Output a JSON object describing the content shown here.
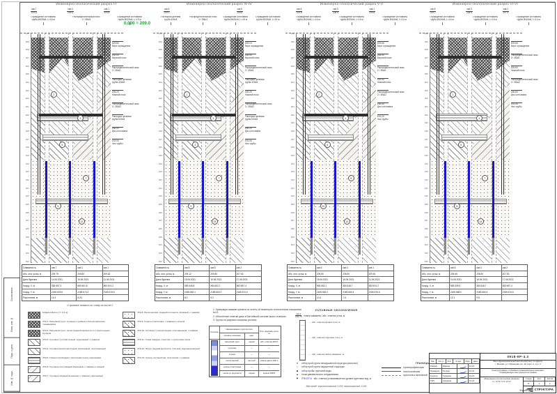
{
  "colors": {
    "accent_green": "#18A938",
    "pile_blue": "#1616CE",
    "signature_blue": "#2A4FD0"
  },
  "datum_label": "0.000 = 209.0",
  "ruler": [
    "210",
    "209",
    "208",
    "207",
    "206",
    "205",
    "204",
    "203",
    "202",
    "201",
    "200",
    "199",
    "198",
    "197",
    "196",
    "195",
    "194",
    "193",
    "192",
    "191",
    "190",
    "189",
    "188",
    "187",
    "186",
    "185",
    "184",
    "183",
    "182"
  ],
  "sections": [
    {
      "title": "Инженерно-геологический разрез I-I",
      "callouts": [
        {
          "n": "скв.7",
          "e": "209.8"
        },
        {
          "n": "скв.4",
          "e": "209.6"
        },
        {
          "n": "скв.1",
          "e": "209.8"
        }
      ],
      "top_ann": [
        "Ограждение котлована\nтруба Ø426х8, L=16 м",
        "Распределительный пояс\n2 I 35Ш1",
        "Ограждение котлована\nтруба Ø426х8, L=15 м"
      ],
      "right_ann": [
        "209.80\nВерх ограждения",
        "208.00\nВерхний пояс",
        "Распределительный пояс\n2 I 35Ш1",
        "Распорка целевая\nтруба 426х8",
        "205.20\nНижний пояс",
        "Распределительный пояс\n2 I 35Ш2",
        "Распорка целевая\nтруба 630х8",
        "196.00\nДно котлована",
        "193.00\nНиз трубы"
      ],
      "ige": [
        "2",
        "3",
        "5",
        "7",
        "9",
        "12"
      ]
    },
    {
      "title": "Инженерно-геологический разрез IV-IV",
      "callouts": [
        {
          "n": "скв.5",
          "e": "209.1"
        },
        {
          "n": "скв.6",
          "e": "209.8"
        }
      ],
      "top_ann": [
        "Распорка целевая\nтруба 426х8",
        "Распределительный пояс\n2 I 35Ш1",
        "Ограждение котлована\nтруба Ø426х8, L=15 м",
        "Ограждение котлована\nтруба Ø426х8, L=14 м"
      ],
      "right_ann": [
        "209.10\nВерх ограждения",
        "208.00\nВерхний пояс",
        "Распределительный пояс\n2 I 35Ш1",
        "Распорка целевая\nтруба 426х8",
        "205.20\nНижний пояс",
        "Распределительный пояс\n2 I 35Ш2",
        "Распорка целевая\nтруба 630х8",
        "196.20\nДно котлована",
        "193.00\nНиз трубы"
      ],
      "ige": [
        "1",
        "3",
        "4",
        "7",
        "9",
        "13"
      ]
    },
    {
      "title": "Инженерно-геологический разрез V-V",
      "callouts": [
        {
          "n": "скв.6",
          "e": "209.8"
        },
        {
          "n": "скв.3",
          "e": "208.9"
        },
        {
          "n": "скв.1",
          "e": "209.8"
        }
      ],
      "top_ann": [
        "Ограждение котлована\nтруба Ø426х8, L=16 м",
        "Ограждение котлована\nтруба Ø426х8, L=15 м",
        "Ограждение котлована\nтруба Ø426х8, L=14 м"
      ],
      "right_ann": [
        "209.60\nВерх ограждения",
        "208.00\nВерхний пояс",
        "Распределительный пояс\n2 I 35Ш1",
        "205.40\nНижний пояс",
        "Распределительный пояс\n2 I 35Ш2",
        "196.40\nДно котлована",
        "193.20\nНиз трубы"
      ],
      "ige": [
        "2",
        "4",
        "6",
        "8",
        "10",
        "12"
      ]
    },
    {
      "title": "Инженерно-геологический разрез VI-VI",
      "callouts": [
        {
          "n": "скв.8",
          "e": "209.7"
        },
        {
          "n": "скв.3",
          "e": "208.9"
        },
        {
          "n": "скв.2",
          "e": "207.5"
        }
      ],
      "top_ann": [
        "Ограждение котлована\nтруба Ø426х8, L=16 м",
        "Ограждение котлована\nтруба Ø426х8, L=15 м",
        "Ограждение котлована\nтруба Ø426х8, L=14 м"
      ],
      "right_ann": [
        "209.60\nВерх ограждения",
        "Распределительный пояс\n2 I 35Ш1",
        "205.60\nНижний пояс",
        "Распределительный пояс\n2 I 35Ш2",
        "196.60\nДно котлована",
        "193.40\nНиз трубы"
      ],
      "ige": [
        "1",
        "3",
        "5",
        "7",
        "11",
        "14"
      ]
    }
  ],
  "tables": [
    {
      "rows": [
        [
          "Скважина №",
          "скв.7",
          "скв.4",
          "скв.1"
        ],
        [
          "Абс. отм. устья, м",
          "209.75",
          "209.60",
          "209.81"
        ],
        [
          "Дата бурения",
          "14.06.2021",
          "15.06.2021",
          "11.06.2021"
        ],
        [
          "Коорд. X, м",
          "583 657.3",
          "583 661.8",
          "583 674.2"
        ],
        [
          "Коорд. Y, м",
          "2185 678.8",
          "2185 674.2",
          "2185 676.6"
        ],
        [
          "Расстояние, м",
          "14.3",
          "8.20",
          ""
        ]
      ]
    },
    {
      "rows": [
        [
          "Скважина №",
          "скв.5",
          "скв.6",
          "скв.2"
        ],
        [
          "Абс. отм. устья, м",
          "209.12",
          "209.80",
          "207.53"
        ],
        [
          "Дата бурения",
          "15.06.2021",
          "15.06.2021",
          "17.06.2021"
        ],
        [
          "Коорд. X, м",
          "583 645.8",
          "583 652.1",
          "583 657.4"
        ],
        [
          "Коорд. Y, м",
          "2185 652.1",
          "2185 653.2",
          "2185 674.6"
        ],
        [
          "Расстояние, м",
          "8.0",
          "9.2",
          ""
        ]
      ]
    },
    {
      "rows": [
        [
          "Скважина №",
          "скв.6",
          "скв.3",
          "скв.1"
        ],
        [
          "Абс. отм. устья, м",
          "209.80",
          "208.90",
          "209.81"
        ],
        [
          "Дата бурения",
          "15.06.2021",
          "16.06.2021",
          "11.06.2021"
        ],
        [
          "Коорд. X, м",
          "583 652.1",
          "583 648.7",
          "583 674.2"
        ],
        [
          "Коорд. Y, м",
          "2185 653.2",
          "2185 660.4",
          "2185 676.6"
        ],
        [
          "Расстояние, м",
          "10.4",
          "7.6",
          ""
        ]
      ]
    },
    {
      "rows": [
        [
          "Скважина №",
          "скв.8",
          "скв.3",
          "скв.2"
        ],
        [
          "Абс. отм. устья, м",
          "209.65",
          "208.90",
          "207.53"
        ],
        [
          "Дата бурения",
          "14.06.2021",
          "16.06.2021",
          "17.06.2021"
        ],
        [
          "Коорд. X, м",
          "583 639.5",
          "583 648.7",
          "583 657.4"
        ],
        [
          "Коорд. Y, м",
          "2185 668.0",
          "2185 660.4",
          "2185 674.6"
        ],
        [
          "Расстояние, м",
          "12.1",
          "9.8",
          ""
        ]
      ]
    }
  ],
  "table_note": "О привязке скважин см. схему на листе 2",
  "legend": {
    "col1": [
      {
        "pat": "pat-cross",
        "text": "Асфальтобетон (t = 0.1 м)"
      },
      {
        "pat": "pat-cross",
        "text": "ИГЭ-1. Насыпной грунт: суглинок с щебнем и битым кирпичом, слежавшийся"
      },
      {
        "pat": "pat-cross",
        "text": "ИГЭ-2. Насыпной грунт: песок средней крупности со строительным мусором"
      },
      {
        "pat": "pat-diag",
        "text": "ИГЭ-3. Суглинок тугопластичный, коричневый, с гравием"
      },
      {
        "pat": "pat-diag",
        "text": "ИГЭ-4. Суглинок мягкопластичный, коричневый, опесчаненный"
      },
      {
        "pat": "pat-hlines",
        "text": "ИГЭ-5. Глина полутвёрдая с прослоями песка, коричневая"
      },
      {
        "pat": "pat-diag2",
        "text": "ИГЭ-6. Суглинок полутвёрдый моренный, с гравием и галькой"
      },
      {
        "pat": "pat-diag2",
        "text": "ИГЭ-7. Суглинок твёрдый моренный, с гравием, коричневый"
      }
    ],
    "col2": [
      {
        "pat": "pat-dots",
        "text": "ИГЭ-8. Песок мелкий, средней плотности, влажный, с гравием"
      },
      {
        "pat": "pat-diagdot",
        "text": "ИГЭ-9. Супесь пластичная, с гравием и галькой"
      },
      {
        "pat": "pat-diagdot",
        "text": "ИГЭ-10. Суглинок тугопластичный, опесчаненный, с гравием"
      },
      {
        "pat": "pat-hlines",
        "text": "ИГЭ-11. Глина твёрдая, слоистая, с прослоями песка"
      },
      {
        "pat": "pat-dots",
        "text": "ИГЭ-12. Песок средней крупности, плотный, водонасыщенный"
      },
      {
        "pat": "pat-diagdot",
        "text": "ИГЭ-13. Супесь песчанистая, пластичная, с гравием"
      }
    ]
  },
  "notes": {
    "items": [
      "1. Нумерация скважин принята по отчёту об инженерно-геологических изысканиях №13.",
      "2. Абсолютные отметки даны в Балтийской системе высот, в метрах.",
      "3. Грунты на разрезах показаны условно."
    ]
  },
  "column_table": {
    "headers": {
      "col": "Колонка",
      "name": "Наименование грунтов слоя",
      "sub1": "полевое описание",
      "sub2": "цвет",
      "note": "Отм. подошвы слоя, м"
    },
    "rows": [
      {
        "name": "насыпной грунт",
        "color": "серый",
        "note": "абс. отметка 203.6"
      },
      {
        "name": "суглинок",
        "color": "—",
        "note": "—"
      },
      {
        "name": "супесь",
        "color": "—",
        "note": "—"
      },
      {
        "name": "песок мелкий",
        "color": "жёлтый",
        "note": "смена цвета 196.4"
      },
      {
        "name": "супесь пластичная",
        "color": "—",
        "note": "—"
      },
      {
        "name": "песок ср. крупности",
        "color": "серый",
        "note": "кровля 188.6"
      }
    ]
  },
  "symbols": {
    "title": "УСЛОВНЫЕ ОБОЗНАЧЕНИЯ",
    "callout_n": "скв.1",
    "callout_e": "209.75",
    "callout_text": "номер скважины / абс. отметка устья, м",
    "stick_top": "абс. отметка кровли слоя, м",
    "stick_mid": "абс. отметка подошвы слоя, м",
    "stick_bot": "абс. отметка забоя скважины, м",
    "bullets": [
      {
        "icon": "●",
        "text": "отбор проб грунта ненарушенной структуры (монолит)"
      },
      {
        "icon": "○",
        "text": "отбор проб грунта нарушенной структуры"
      },
      {
        "icon": "◆",
        "text": "отбор пробы грунтовой воды"
      },
      {
        "icon": "▲",
        "text": "точка динамического зондирования"
      }
    ],
    "water_mark": "УГВ 197.6",
    "water_text": "абс. отметка установившегося уровня грунтовых вод, м",
    "scale_note": "Масштаб: горизонтальный 1:200, вертикальный 1:100"
  },
  "borders": {
    "title": "ГРАНИЦЫ",
    "items": [
      "стратиграфическая",
      "литологическая",
      "прослоев и включений"
    ]
  },
  "strip": [
    "Согласовано",
    "Взам. инв. №",
    "Подп. и дата",
    "Инв. № подл."
  ],
  "titleblock": {
    "code": "0918-КР-4.3",
    "project": "Многофункциональный жилой комплекс по адресу:\nг. Москва, ул. Образцова, вл. 10, корп. 2, стр. 3",
    "section": "Конструктивные и объёмно-планировочные решения.\nОграждающие конструкции котлована",
    "sheet_title": "Инженерно-геологические разрезы\nI-I, IV-IV, V-V, VI-VI",
    "stage_h": "Стадия",
    "sheet_h": "Лист",
    "sheets_h": "Листов",
    "stage": "П",
    "sheet": "1",
    "sheets": "1",
    "sig_headers": [
      "Изм.",
      "Кол.уч",
      "Лист",
      "№ док.",
      "Подп.",
      "Дата"
    ],
    "sig_rows": [
      {
        "role": "Разраб.",
        "name": "Иванов",
        "date": "10.21"
      },
      {
        "role": "Проверил",
        "name": "Петров",
        "date": "10.21"
      },
      {
        "role": "Н.контр.",
        "name": "Сидоров",
        "date": "10.21"
      },
      {
        "role": "ГИП",
        "name": "Смирнов",
        "date": "10.21"
      }
    ],
    "logo": "СТРУКТУРА",
    "format": "Формат А1"
  }
}
